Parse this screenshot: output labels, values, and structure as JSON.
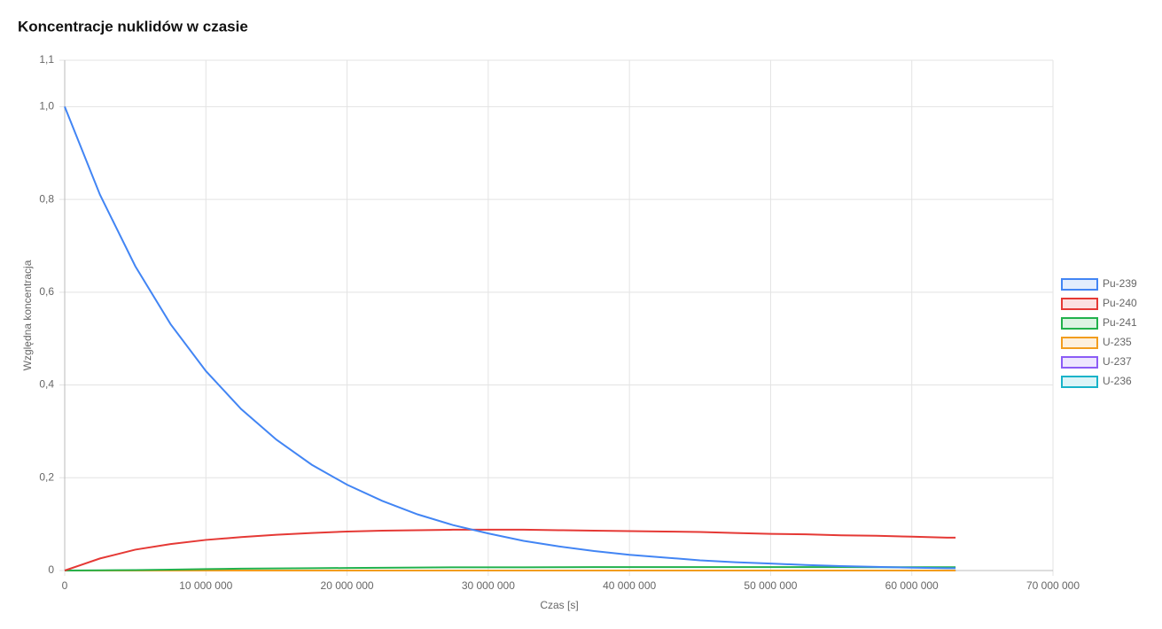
{
  "chart_data": {
    "type": "line",
    "title": "Koncentracje nuklidów w czasie",
    "x_label": "Czas [s]",
    "y_label": "Względna koncentracja",
    "x": [
      0,
      2500000,
      5000000,
      7500000,
      10000000,
      12500000,
      15000000,
      17500000,
      20000000,
      22500000,
      25000000,
      27500000,
      30000000,
      32500000,
      35000000,
      37500000,
      40000000,
      42500000,
      45000000,
      47500000,
      50000000,
      52500000,
      55000000,
      57500000,
      60000000,
      62500000,
      63100000
    ],
    "series": [
      {
        "name": "Pu-239",
        "color": "#4285f4",
        "values": [
          1,
          0.81,
          0.656,
          0.531,
          0.43,
          0.348,
          0.282,
          0.228,
          0.185,
          0.15,
          0.121,
          0.098,
          0.08,
          0.064,
          0.052,
          0.042,
          0.034,
          0.028,
          0.022,
          0.018,
          0.015,
          0.012,
          0.0096,
          0.0078,
          0.0063,
          0.0051,
          0.0049
        ]
      },
      {
        "name": "Pu-240",
        "color": "#e53935",
        "values": [
          0,
          0.026,
          0.045,
          0.057,
          0.066,
          0.072,
          0.077,
          0.081,
          0.084,
          0.086,
          0.087,
          0.088,
          0.088,
          0.088,
          0.087,
          0.086,
          0.085,
          0.084,
          0.083,
          0.081,
          0.079,
          0.078,
          0.076,
          0.075,
          0.073,
          0.071,
          0.071
        ]
      },
      {
        "name": "Pu-241",
        "color": "#22b14c",
        "values": [
          0,
          0.0005,
          0.001,
          0.002,
          0.003,
          0.004,
          0.0045,
          0.005,
          0.0055,
          0.006,
          0.0065,
          0.007,
          0.007,
          0.007,
          0.0072,
          0.0073,
          0.0074,
          0.0074,
          0.0074,
          0.0074,
          0.0074,
          0.0073,
          0.0073,
          0.0072,
          0.0072,
          0.0071,
          0.0071
        ]
      },
      {
        "name": "U-235",
        "color": "#f29d1e",
        "values": [
          0,
          0,
          0,
          0,
          0,
          0,
          0,
          0,
          0,
          0,
          0,
          0,
          0,
          0,
          0,
          0,
          0,
          0,
          0,
          0,
          0,
          0,
          0,
          0,
          0,
          0,
          0
        ]
      },
      {
        "name": "U-237",
        "color": "#8b5cf6",
        "values": [
          0,
          0,
          0,
          0,
          0,
          0,
          0,
          0,
          0,
          0,
          0,
          0,
          0,
          0,
          0,
          0,
          0,
          0,
          0,
          0,
          0,
          0,
          0,
          0,
          0,
          0,
          0
        ]
      },
      {
        "name": "U-236",
        "color": "#17b3c9",
        "values": [
          0,
          0,
          0,
          0,
          0,
          0,
          0,
          0,
          0,
          0,
          0,
          0,
          0,
          0,
          0,
          0,
          0,
          0,
          0,
          0,
          0,
          0,
          0,
          0,
          0,
          0,
          0
        ]
      }
    ],
    "xlim": [
      0,
      70000000
    ],
    "xticks": [
      0,
      {
        "value": 10000000,
        "label": "10 000 000"
      },
      {
        "value": 20000000,
        "label": "20 000 000"
      },
      {
        "value": 30000000,
        "label": "30 000 000"
      },
      {
        "value": 40000000,
        "label": "40 000 000"
      },
      {
        "value": 50000000,
        "label": "50 000 000"
      },
      {
        "value": 60000000,
        "label": "60 000 000"
      },
      {
        "value": 70000000,
        "label": "70 000 000"
      }
    ],
    "ylim": [
      0,
      1.1
    ],
    "yticks": [
      0,
      {
        "value": 0.2,
        "label": "0,2"
      },
      {
        "value": 0.4,
        "label": "0,4"
      },
      {
        "value": 0.6,
        "label": "0,6"
      },
      {
        "value": 0.8,
        "label": "0,8"
      },
      {
        "value": 1,
        "label": "1,0"
      },
      {
        "value": 1.1,
        "label": "1,1"
      }
    ],
    "grid": true,
    "legend": "right"
  }
}
